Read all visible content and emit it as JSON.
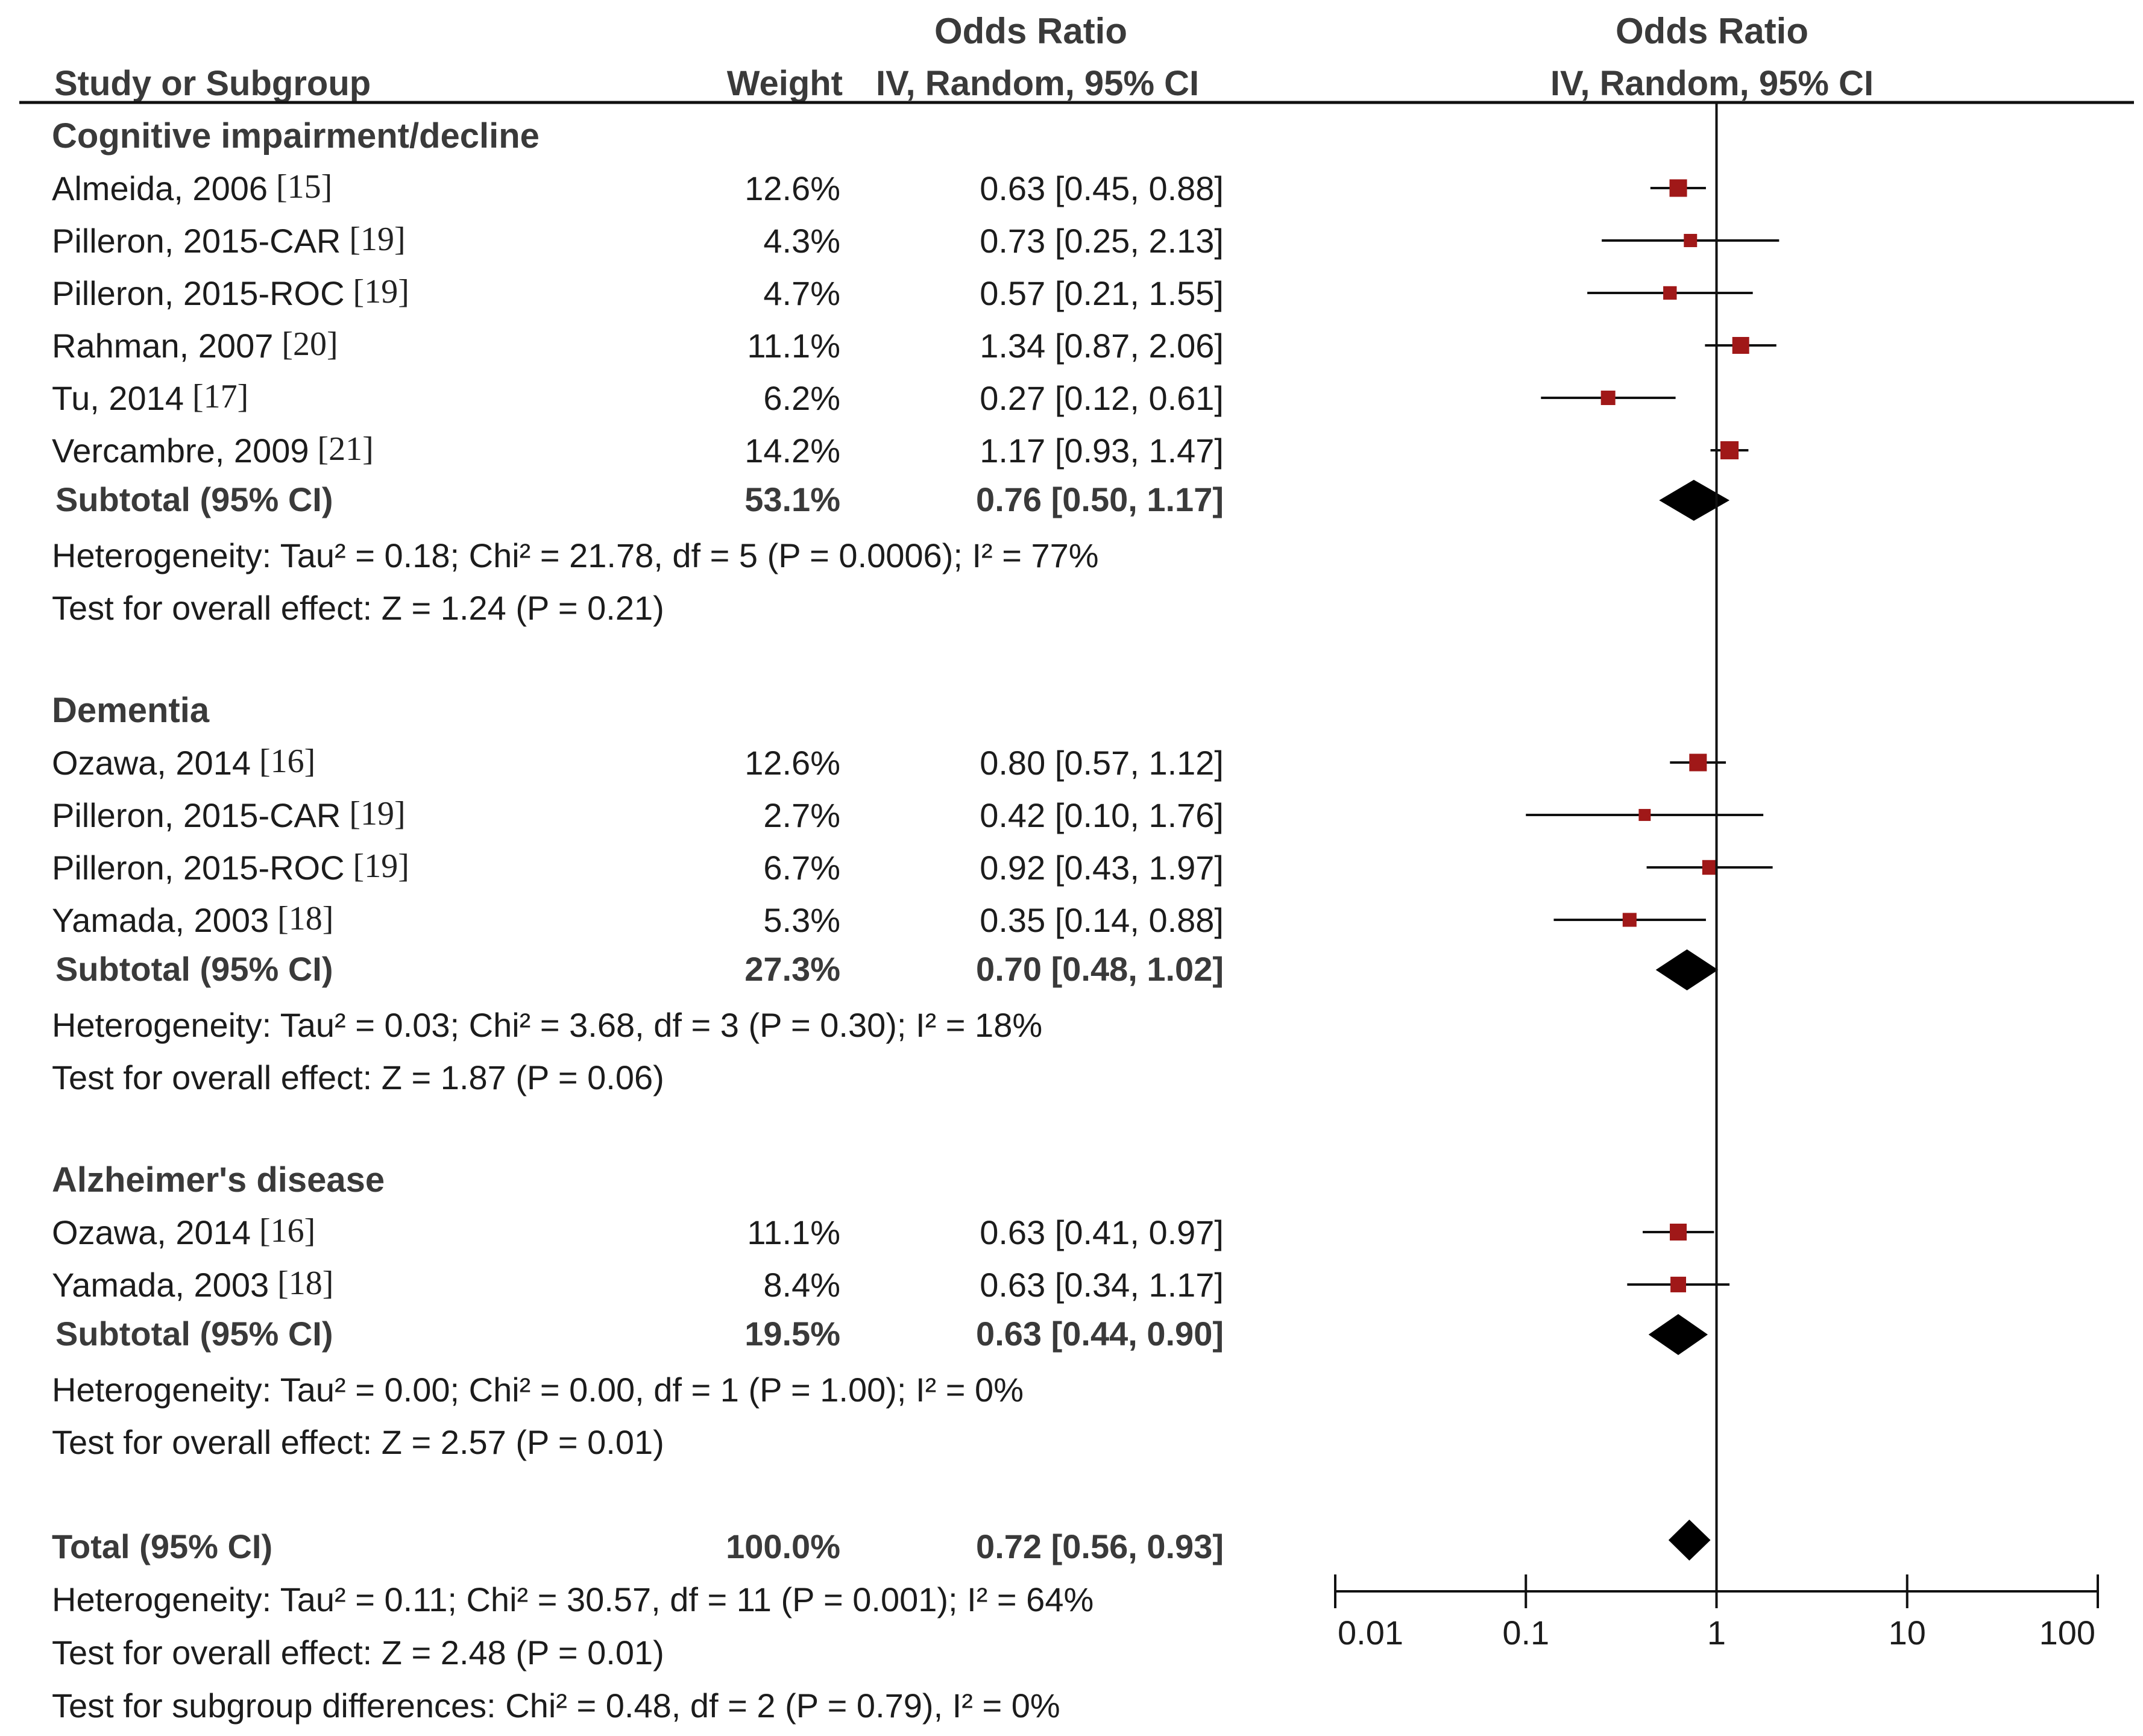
{
  "headers": {
    "study": "Study or Subgroup",
    "weight": "Weight",
    "or_top": "Odds Ratio",
    "or_bottom": "IV, Random, 95% CI",
    "plot_top": "Odds Ratio",
    "plot_bottom": "IV, Random, 95% CI"
  },
  "colors": {
    "point": "#a01818",
    "line": "#111111",
    "diamond": "#000000"
  },
  "chart_data": {
    "type": "forest",
    "scale": "log",
    "xlim": [
      0.01,
      100
    ],
    "null_value": 1,
    "ticks": [
      {
        "value": 0.01,
        "label": "0.01"
      },
      {
        "value": 0.1,
        "label": "0.1"
      },
      {
        "value": 1,
        "label": "1"
      },
      {
        "value": 10,
        "label": "10"
      },
      {
        "value": 100,
        "label": "100"
      }
    ],
    "groups": [
      {
        "name": "Cognitive impairment/decline",
        "studies": [
          {
            "label": "Almeida, 2006",
            "ref": "[15]",
            "weight": "12.6%",
            "ci_text": "0.63 [0.45, 0.88]",
            "or": 0.63,
            "lo": 0.45,
            "hi": 0.88,
            "w": 12.6
          },
          {
            "label": "Pilleron, 2015-CAR",
            "ref": "[19]",
            "weight": "4.3%",
            "ci_text": "0.73 [0.25, 2.13]",
            "or": 0.73,
            "lo": 0.25,
            "hi": 2.13,
            "w": 4.3
          },
          {
            "label": "Pilleron, 2015-ROC",
            "ref": "[19]",
            "weight": "4.7%",
            "ci_text": "0.57 [0.21, 1.55]",
            "or": 0.57,
            "lo": 0.21,
            "hi": 1.55,
            "w": 4.7
          },
          {
            "label": "Rahman, 2007",
            "ref": "[20]",
            "weight": "11.1%",
            "ci_text": "1.34 [0.87, 2.06]",
            "or": 1.34,
            "lo": 0.87,
            "hi": 2.06,
            "w": 11.1
          },
          {
            "label": "Tu, 2014",
            "ref": "[17]",
            "weight": "6.2%",
            "ci_text": "0.27 [0.12, 0.61]",
            "or": 0.27,
            "lo": 0.12,
            "hi": 0.61,
            "w": 6.2
          },
          {
            "label": "Vercambre, 2009",
            "ref": "[21]",
            "weight": "14.2%",
            "ci_text": "1.17 [0.93, 1.47]",
            "or": 1.17,
            "lo": 0.93,
            "hi": 1.47,
            "w": 14.2
          }
        ],
        "subtotal": {
          "label": "Subtotal (95% CI)",
          "weight": "53.1%",
          "ci_text": "0.76 [0.50, 1.17]",
          "or": 0.76,
          "lo": 0.5,
          "hi": 1.17
        },
        "heterogeneity": "Heterogeneity: Tau² = 0.18; Chi² = 21.78, df = 5 (P = 0.0006); I² = 77%",
        "overall": "Test for overall effect: Z = 1.24 (P = 0.21)"
      },
      {
        "name": "Dementia",
        "studies": [
          {
            "label": "Ozawa, 2014",
            "ref": "[16]",
            "weight": "12.6%",
            "ci_text": "0.80 [0.57, 1.12]",
            "or": 0.8,
            "lo": 0.57,
            "hi": 1.12,
            "w": 12.6
          },
          {
            "label": "Pilleron, 2015-CAR",
            "ref": "[19]",
            "weight": "2.7%",
            "ci_text": "0.42 [0.10, 1.76]",
            "or": 0.42,
            "lo": 0.1,
            "hi": 1.76,
            "w": 2.7
          },
          {
            "label": "Pilleron, 2015-ROC",
            "ref": "[19]",
            "weight": "6.7%",
            "ci_text": "0.92 [0.43, 1.97]",
            "or": 0.92,
            "lo": 0.43,
            "hi": 1.97,
            "w": 6.7
          },
          {
            "label": "Yamada, 2003",
            "ref": "[18]",
            "weight": "5.3%",
            "ci_text": "0.35 [0.14, 0.88]",
            "or": 0.35,
            "lo": 0.14,
            "hi": 0.88,
            "w": 5.3
          }
        ],
        "subtotal": {
          "label": "Subtotal (95% CI)",
          "weight": "27.3%",
          "ci_text": "0.70 [0.48, 1.02]",
          "or": 0.7,
          "lo": 0.48,
          "hi": 1.02
        },
        "heterogeneity": "Heterogeneity: Tau² = 0.03; Chi² = 3.68, df = 3 (P = 0.30); I² = 18%",
        "overall": "Test for overall effect: Z = 1.87 (P = 0.06)"
      },
      {
        "name": "Alzheimer's disease",
        "studies": [
          {
            "label": "Ozawa, 2014",
            "ref": "[16]",
            "weight": "11.1%",
            "ci_text": "0.63 [0.41, 0.97]",
            "or": 0.63,
            "lo": 0.41,
            "hi": 0.97,
            "w": 11.1
          },
          {
            "label": "Yamada, 2003",
            "ref": "[18]",
            "weight": "8.4%",
            "ci_text": "0.63 [0.34, 1.17]",
            "or": 0.63,
            "lo": 0.34,
            "hi": 1.17,
            "w": 8.4
          }
        ],
        "subtotal": {
          "label": "Subtotal (95% CI)",
          "weight": "19.5%",
          "ci_text": "0.63 [0.44, 0.90]",
          "or": 0.63,
          "lo": 0.44,
          "hi": 0.9
        },
        "heterogeneity": "Heterogeneity: Tau² = 0.00; Chi² = 0.00, df = 1 (P = 1.00); I² = 0%",
        "overall": "Test for overall effect: Z = 2.57 (P = 0.01)"
      }
    ],
    "total": {
      "label": "Total (95% CI)",
      "weight": "100.0%",
      "ci_text": "0.72 [0.56, 0.93]",
      "or": 0.72,
      "lo": 0.56,
      "hi": 0.93,
      "heterogeneity": "Heterogeneity: Tau² = 0.11; Chi² = 30.57, df = 11 (P = 0.001); I² = 64%",
      "overall": "Test for overall effect: Z = 2.48 (P = 0.01)",
      "subgroup": "Test for subgroup differences: Chi² = 0.48, df = 2 (P = 0.79), I² = 0%"
    }
  }
}
